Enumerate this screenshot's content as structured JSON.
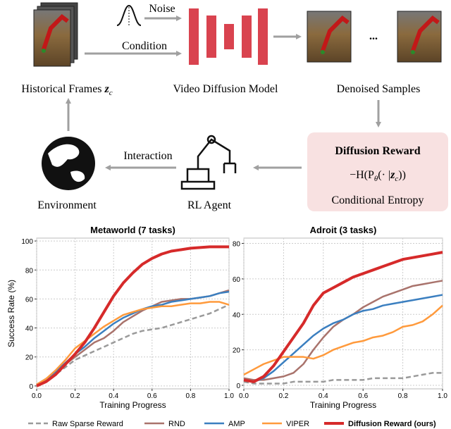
{
  "diagram": {
    "noise": "Noise",
    "condition": "Condition",
    "historical_frames": {
      "label": "Historical Frames",
      "symbol": "z",
      "subscript": "c"
    },
    "video_diffusion_model": "Video Diffusion Model",
    "denoised_samples": "Denoised Samples",
    "ellipsis": "...",
    "reward_box": {
      "title": "Diffusion Reward",
      "formula": [
        "−H(P",
        "θ",
        "(· |",
        "z",
        "c",
        "))"
      ],
      "caption": "Conditional Entropy"
    },
    "interaction": "Interaction",
    "rl_agent": "RL Agent",
    "environment": "Environment"
  },
  "chart_data": [
    {
      "type": "line",
      "title": "Metaworld (7 tasks)",
      "xlabel": "Training Progress",
      "ylabel": "Success Rate (%)",
      "x": [
        0,
        0.05,
        0.1,
        0.15,
        0.2,
        0.25,
        0.3,
        0.35,
        0.4,
        0.45,
        0.5,
        0.55,
        0.6,
        0.65,
        0.7,
        0.75,
        0.8,
        0.85,
        0.9,
        0.95,
        1
      ],
      "xlim": [
        0,
        1
      ],
      "xticks": [
        {
          "value": 0,
          "label": "0.0"
        },
        0.2,
        0.4,
        0.6,
        0.8,
        {
          "value": 1,
          "label": "1.0"
        }
      ],
      "ylim": [
        -2,
        102
      ],
      "yticks": [
        0,
        20,
        40,
        60,
        80,
        100
      ],
      "grid": true,
      "legend": "bottom",
      "series": [
        {
          "name": "Raw Sparse Reward",
          "color": "#9a9a9a",
          "linestyle": "dashed",
          "values": [
            1,
            4,
            8,
            13,
            18,
            21,
            24,
            27,
            30,
            33,
            36,
            38,
            39,
            40,
            42,
            44,
            46,
            48,
            50,
            53,
            56
          ]
        },
        {
          "name": "RND",
          "color": "#a9736c",
          "values": [
            1,
            4,
            9,
            15,
            20,
            25,
            30,
            33,
            38,
            44,
            48,
            52,
            55,
            58,
            59,
            60,
            60,
            61,
            62,
            64,
            66
          ]
        },
        {
          "name": "AMP",
          "color": "#3b7fc0",
          "values": [
            1,
            5,
            10,
            16,
            22,
            27,
            33,
            38,
            43,
            47,
            50,
            53,
            55,
            56,
            58,
            59,
            60,
            61,
            62,
            64,
            65
          ]
        },
        {
          "name": "VIPER",
          "color": "#ff9a3c",
          "values": [
            1,
            5,
            11,
            18,
            26,
            31,
            36,
            41,
            45,
            49,
            51,
            53,
            54,
            55,
            55,
            56,
            57,
            57,
            58,
            58,
            56
          ]
        },
        {
          "name": "Diffusion Reward (ours)",
          "color": "#d62a2a",
          "values": [
            0,
            3,
            8,
            15,
            22,
            30,
            40,
            51,
            62,
            71,
            78,
            84,
            88,
            91,
            93,
            94,
            95,
            95.5,
            96,
            96,
            96
          ]
        }
      ]
    },
    {
      "type": "line",
      "title": "Adroit (3 tasks)",
      "xlabel": "Training Progress",
      "x": [
        0,
        0.05,
        0.1,
        0.15,
        0.2,
        0.25,
        0.3,
        0.35,
        0.4,
        0.45,
        0.5,
        0.55,
        0.6,
        0.65,
        0.7,
        0.75,
        0.8,
        0.85,
        0.9,
        0.95,
        1
      ],
      "xlim": [
        0,
        1
      ],
      "xticks": [
        {
          "value": 0,
          "label": "0.0"
        },
        0.2,
        0.4,
        0.6,
        0.8,
        {
          "value": 1,
          "label": "1.0"
        }
      ],
      "ylim": [
        -2,
        83
      ],
      "yticks": [
        0,
        20,
        40,
        60,
        80
      ],
      "grid": true,
      "series": [
        {
          "name": "Raw Sparse Reward",
          "color": "#9a9a9a",
          "linestyle": "dashed",
          "values": [
            2,
            1,
            1,
            1,
            1,
            2,
            2,
            2,
            2,
            3,
            3,
            3,
            3,
            4,
            4,
            4,
            4,
            5,
            6,
            7,
            7
          ]
        },
        {
          "name": "RND",
          "color": "#a9736c",
          "values": [
            4,
            3,
            3,
            4,
            5,
            7,
            12,
            20,
            27,
            33,
            37,
            40,
            44,
            47,
            50,
            52,
            54,
            56,
            57,
            58,
            59
          ]
        },
        {
          "name": "AMP",
          "color": "#3b7fc0",
          "values": [
            3,
            2,
            4,
            8,
            13,
            18,
            23,
            28,
            32,
            35,
            37,
            40,
            42,
            43,
            45,
            46,
            47,
            48,
            49,
            50,
            51
          ]
        },
        {
          "name": "VIPER",
          "color": "#ff9a3c",
          "values": [
            6,
            9,
            12,
            14,
            16,
            16,
            16,
            15,
            17,
            20,
            22,
            24,
            25,
            27,
            28,
            30,
            33,
            34,
            36,
            40,
            45
          ]
        },
        {
          "name": "Diffusion Reward (ours)",
          "color": "#d62a2a",
          "values": [
            3,
            2,
            5,
            11,
            19,
            27,
            35,
            45,
            52,
            55,
            58,
            61,
            63,
            65,
            67,
            69,
            71,
            72,
            73,
            74,
            75
          ]
        }
      ]
    }
  ]
}
